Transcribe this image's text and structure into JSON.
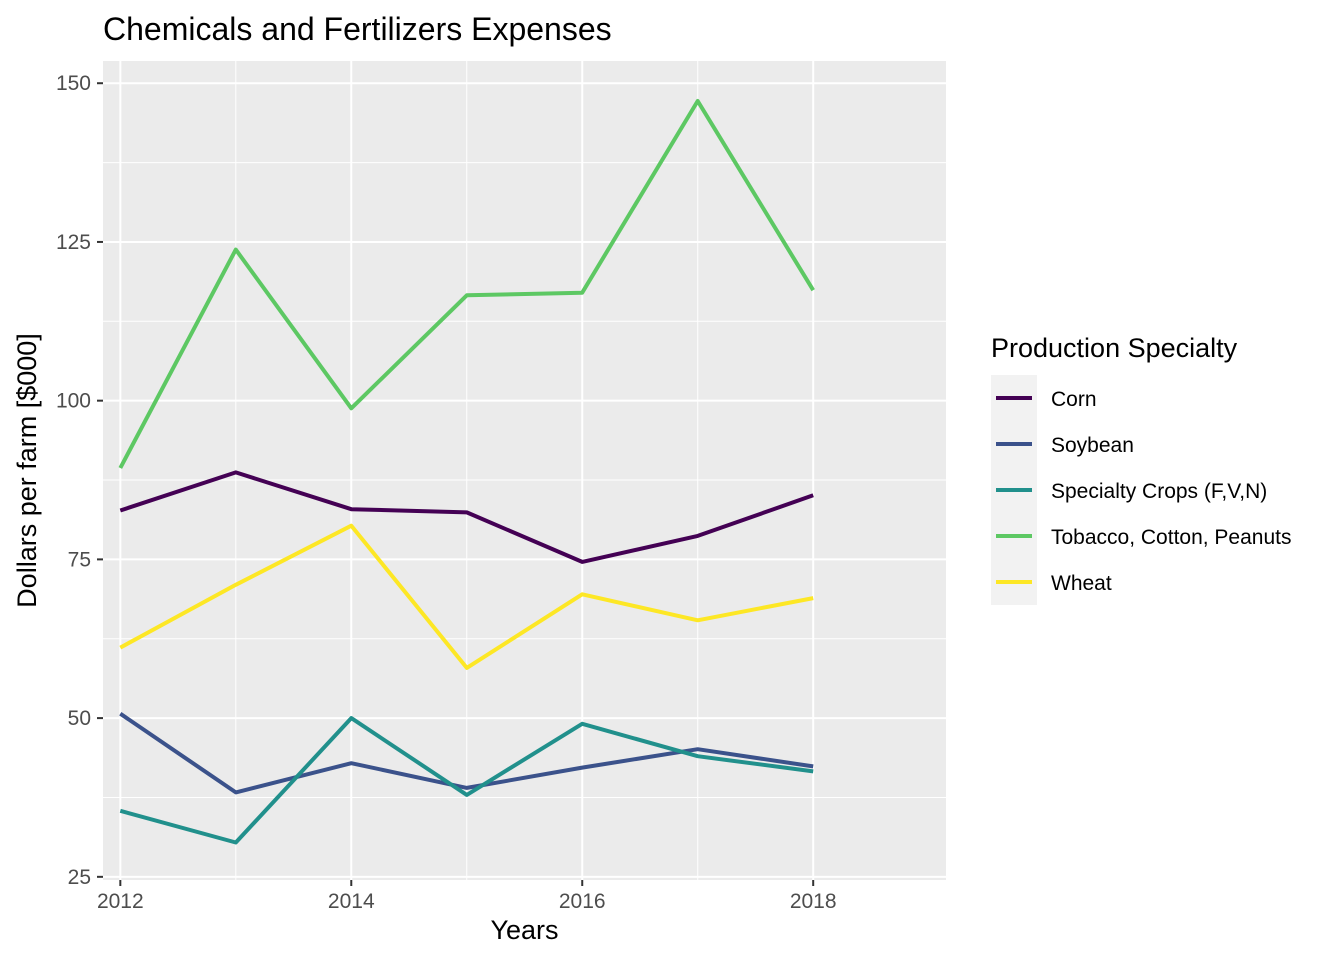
{
  "chart_data": {
    "type": "line",
    "title": "Chemicals and Fertilizers Expenses",
    "xlabel": "Years",
    "ylabel": "Dollars per farm [$000]",
    "x": [
      2012,
      2013,
      2014,
      2015,
      2016,
      2017,
      2018
    ],
    "x_ticks": [
      2012,
      2014,
      2016,
      2018
    ],
    "y_ticks": [
      25,
      50,
      75,
      100,
      125,
      150
    ],
    "xlim": [
      2011.85,
      2019.15
    ],
    "ylim": [
      24.5,
      153.5
    ],
    "grid": true,
    "legend": {
      "title": "Production Specialty",
      "position": "right"
    },
    "series": [
      {
        "name": "Corn",
        "color": "#440154",
        "values": [
          82.7,
          88.7,
          82.9,
          82.4,
          74.6,
          78.7,
          85.1
        ]
      },
      {
        "name": "Soybean",
        "color": "#3b528b",
        "values": [
          50.7,
          38.3,
          42.9,
          39.0,
          42.2,
          45.1,
          42.4
        ]
      },
      {
        "name": "Specialty Crops (F,V,N)",
        "color": "#21908c",
        "values": [
          35.4,
          30.4,
          50.0,
          37.9,
          49.1,
          44.0,
          41.6
        ]
      },
      {
        "name": "Tobacco, Cotton, Peanuts",
        "color": "#5dc863",
        "values": [
          89.4,
          123.8,
          98.8,
          116.6,
          117.0,
          147.2,
          117.4
        ]
      },
      {
        "name": "Wheat",
        "color": "#fde725",
        "values": [
          61.1,
          71.0,
          80.3,
          57.9,
          69.5,
          65.4,
          68.9
        ]
      }
    ]
  }
}
